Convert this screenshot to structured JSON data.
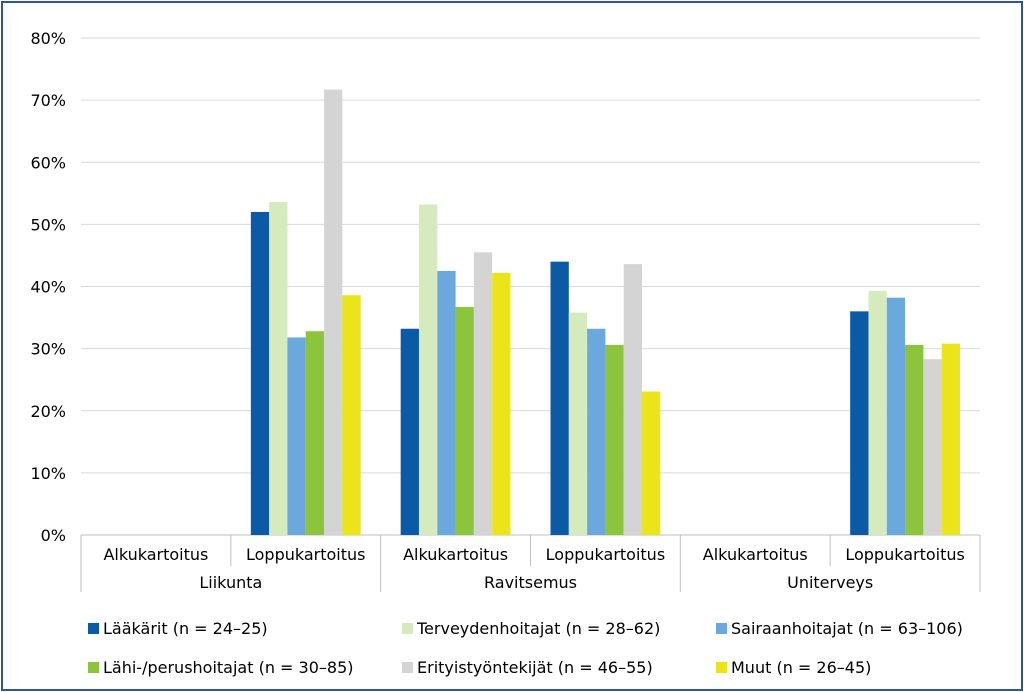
{
  "chart_data": {
    "type": "bar",
    "y_ticks": [
      "0%",
      "10%",
      "20%",
      "30%",
      "40%",
      "50%",
      "60%",
      "70%",
      "80%"
    ],
    "ylim": [
      0,
      80
    ],
    "grid": true,
    "legend_position": "bottom",
    "groups": [
      {
        "label": "Liikunta",
        "categories": [
          "Alkukartoitus",
          "Loppukartoitus"
        ]
      },
      {
        "label": "Ravitsemus",
        "categories": [
          "Alkukartoitus",
          "Loppukartoitus"
        ]
      },
      {
        "label": "Uniterveys",
        "categories": [
          "Alkukartoitus",
          "Loppukartoitus"
        ]
      }
    ],
    "categories": [
      "Liikunta / Alkukartoitus",
      "Liikunta / Loppukartoitus",
      "Ravitsemus / Alkukartoitus",
      "Ravitsemus / Loppukartoitus",
      "Uniterveys / Alkukartoitus",
      "Uniterveys / Loppukartoitus"
    ],
    "series": [
      {
        "name": "Lääkärit (n = 24–25)",
        "color": "#0b5aa6",
        "values": [
          null,
          52,
          33.2,
          44,
          null,
          36
        ]
      },
      {
        "name": "Terveydenhoitajat (n = 28–62)",
        "color": "#d5ebbd",
        "values": [
          null,
          53.6,
          53.2,
          35.8,
          null,
          39.3
        ]
      },
      {
        "name": "Sairaanhoitajat (n = 63–106)",
        "color": "#6aa8de",
        "values": [
          null,
          31.8,
          42.5,
          33.2,
          null,
          38.2
        ]
      },
      {
        "name": "Lähi-/perushoitajat (n = 30–85)",
        "color": "#8cc43e",
        "values": [
          null,
          32.8,
          36.7,
          30.6,
          null,
          30.6
        ]
      },
      {
        "name": "Erityistyöntekijät (n = 46–55)",
        "color": "#d4d4d4",
        "values": [
          null,
          71.7,
          45.5,
          43.6,
          null,
          28.3
        ]
      },
      {
        "name": "Muut (n = 26–45)",
        "color": "#ebe41a",
        "values": [
          null,
          38.6,
          42.2,
          23.1,
          null,
          30.8
        ]
      }
    ]
  }
}
